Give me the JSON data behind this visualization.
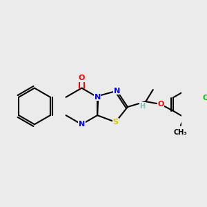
{
  "bg_color": "#ebebeb",
  "atom_colors": {
    "N": "#0000ff",
    "O": "#ff0000",
    "S": "#cccc00",
    "Cl": "#00cc00",
    "C": "#000000",
    "H": "#7fc0c0"
  },
  "bond_color": "#000000",
  "bond_width": 1.5,
  "font_size": 8
}
